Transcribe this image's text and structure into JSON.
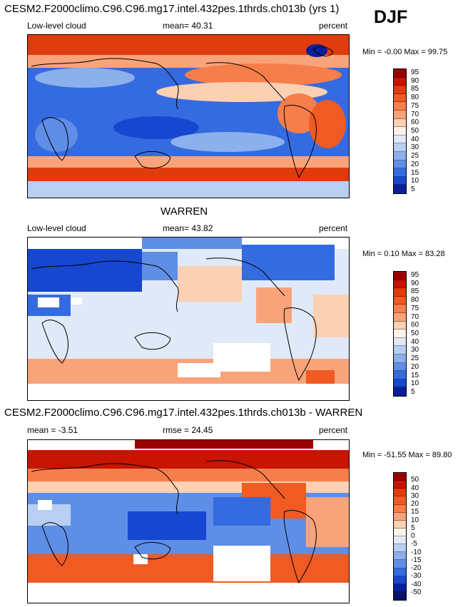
{
  "header": {
    "title": "CESM2.F2000climo.C96.C96.mg17.intel.432pes.1thrds.ch013b (yrs 1)",
    "season": "DJF"
  },
  "chart_data": [
    {
      "type": "heatmap",
      "panel": "model",
      "variable_label": "Low-level cloud",
      "stat_text": "mean=  40.31",
      "units": "percent",
      "minmax_text": "Min =  -0.00 Max =  99.75",
      "mean": 40.31,
      "min": -0.0,
      "max": 99.75,
      "colorbar_levels": [
        "95",
        "90",
        "85",
        "80",
        "75",
        "70",
        "60",
        "50",
        "40",
        "30",
        "25",
        "20",
        "15",
        "10",
        "5"
      ],
      "colorbar_colors": [
        "#9b0000",
        "#c81400",
        "#e03b0d",
        "#f05a23",
        "#f67e4b",
        "#f9a37a",
        "#fbd0b3",
        "#fdf2e8",
        "#dfe9f8",
        "#b8cff2",
        "#8bb0ec",
        "#5f8ee6",
        "#356be0",
        "#1547d0",
        "#0a1e9c"
      ]
    },
    {
      "type": "heatmap",
      "panel": "observations",
      "title": "WARREN",
      "variable_label": "Low-level cloud",
      "stat_text": "mean=  43.82",
      "units": "percent",
      "minmax_text": "Min =  0.10 Max =  83.28",
      "mean": 43.82,
      "min": 0.1,
      "max": 83.28,
      "colorbar_levels": [
        "95",
        "90",
        "85",
        "80",
        "75",
        "70",
        "60",
        "50",
        "40",
        "30",
        "25",
        "20",
        "15",
        "10",
        "5"
      ],
      "colorbar_colors": [
        "#9b0000",
        "#c81400",
        "#e03b0d",
        "#f05a23",
        "#f67e4b",
        "#f9a37a",
        "#fbd0b3",
        "#fdf2e8",
        "#dfe9f8",
        "#b8cff2",
        "#8bb0ec",
        "#5f8ee6",
        "#356be0",
        "#1547d0",
        "#0a1e9c"
      ]
    },
    {
      "type": "heatmap",
      "panel": "difference",
      "title": "CESM2.F2000climo.C96.C96.mg17.intel.432pes.1thrds.ch013b - WARREN",
      "stat_left_text": "mean =  -3.51",
      "stat_text": "rmse =  24.45",
      "units": "percent",
      "minmax_text": "Min = -51.55 Max =  89.80",
      "mean": -3.51,
      "rmse": 24.45,
      "min": -51.55,
      "max": 89.8,
      "colorbar_levels": [
        "50",
        "40",
        "30",
        "20",
        "15",
        "10",
        "5",
        "0",
        "-5",
        "-10",
        "-15",
        "-20",
        "-30",
        "-40",
        "-50"
      ],
      "colorbar_colors": [
        "#9b0000",
        "#c81400",
        "#e03b0d",
        "#f05a23",
        "#f67e4b",
        "#f9a37a",
        "#fbd0b3",
        "#fdf2e8",
        "#dfe9f8",
        "#b8cff2",
        "#8bb0ec",
        "#5f8ee6",
        "#356be0",
        "#1547d0",
        "#0a1e9c",
        "#06126e"
      ]
    }
  ]
}
